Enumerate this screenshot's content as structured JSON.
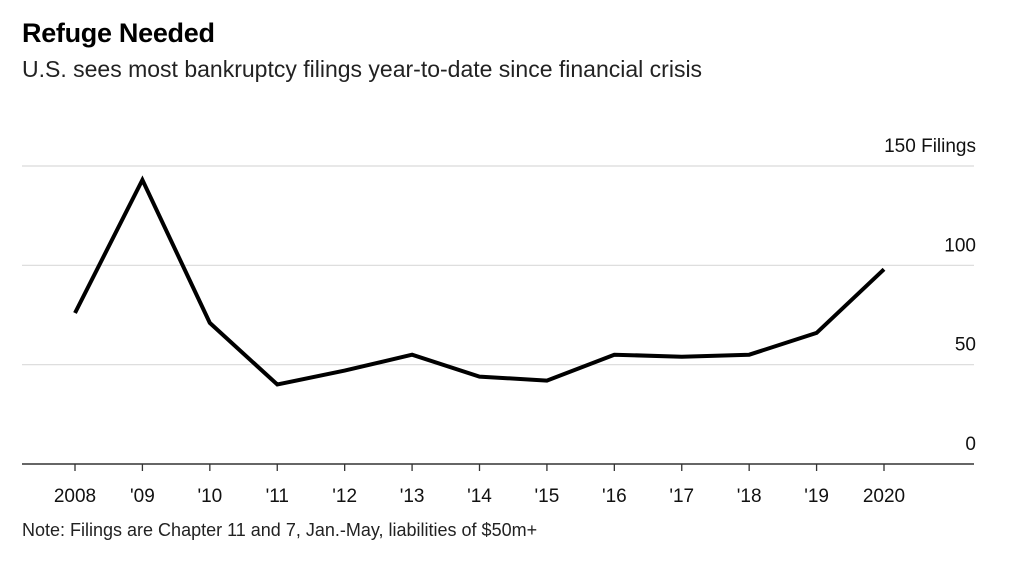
{
  "header": {
    "title": "Refuge Needed",
    "subtitle": "U.S. sees most bankruptcy filings year-to-date since financial crisis"
  },
  "footer": {
    "note": "Note: Filings are Chapter 11 and 7, Jan.-May, liabilities of $50m+"
  },
  "colors": {
    "line": "#000000",
    "grid": "#d9d9d9",
    "axis": "#333333"
  },
  "chart_data": {
    "type": "line",
    "title": "Refuge Needed",
    "subtitle": "U.S. sees most bankruptcy filings year-to-date since financial crisis",
    "xlabel": "",
    "ylabel": "",
    "x": [
      2008,
      2009,
      2010,
      2011,
      2012,
      2013,
      2014,
      2015,
      2016,
      2017,
      2018,
      2019,
      2020
    ],
    "x_tick_labels": [
      "2008",
      "'09",
      "'10",
      "'11",
      "'12",
      "'13",
      "'14",
      "'15",
      "'16",
      "'17",
      "'18",
      "'19",
      "2020"
    ],
    "series": [
      {
        "values": [
          76,
          143,
          71,
          40,
          47,
          55,
          44,
          42,
          55,
          54,
          55,
          66,
          98
        ]
      }
    ],
    "ylim": [
      0,
      150
    ],
    "y_ticks": [
      0,
      50,
      100,
      150
    ],
    "y_tick_labels": [
      "0",
      "50",
      "100",
      "150 Filings"
    ],
    "y_axis_side": "right",
    "grid": true
  }
}
